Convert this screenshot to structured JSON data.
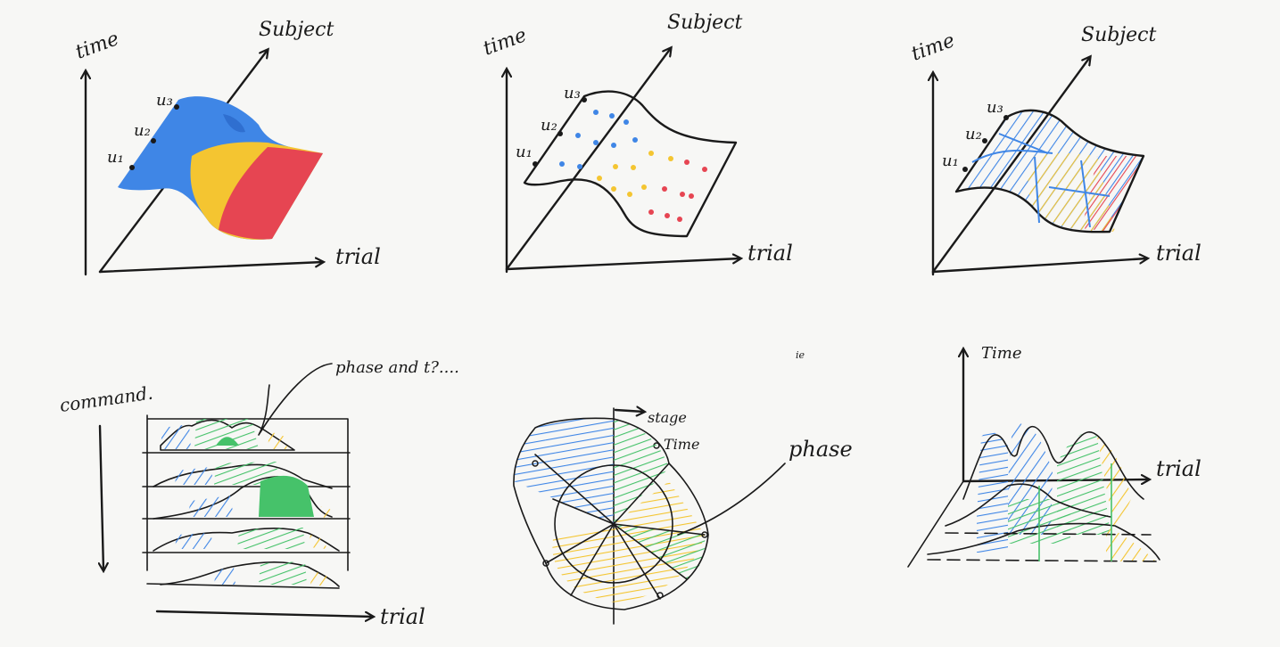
{
  "colors": {
    "blue": "#3f86e6",
    "yellow": "#f4c531",
    "red": "#e64552",
    "green": "#46c26a",
    "ink": "#1a1a1a"
  },
  "panel1": {
    "time": "time",
    "subject": "Subject",
    "trial": "trial",
    "u1": "u₁",
    "u2": "u₂",
    "u3": "u₃"
  },
  "panel2": {
    "time": "time",
    "subject": "Subject",
    "trial": "trial",
    "u1": "u₁",
    "u2": "u₂",
    "u3": "u₃"
  },
  "panel3": {
    "time": "time",
    "subject": "Subject",
    "trial": "trial",
    "u1": "u₁",
    "u2": "u₂",
    "u3": "u₃"
  },
  "panel4": {
    "command": "command.",
    "phase_note": "phase and t?....",
    "trial": "trial"
  },
  "panel5": {
    "stage": "stage",
    "time": "Time",
    "phase": "phase",
    "stray": "ie"
  },
  "panel6": {
    "time": "Time",
    "trial": "trial"
  }
}
